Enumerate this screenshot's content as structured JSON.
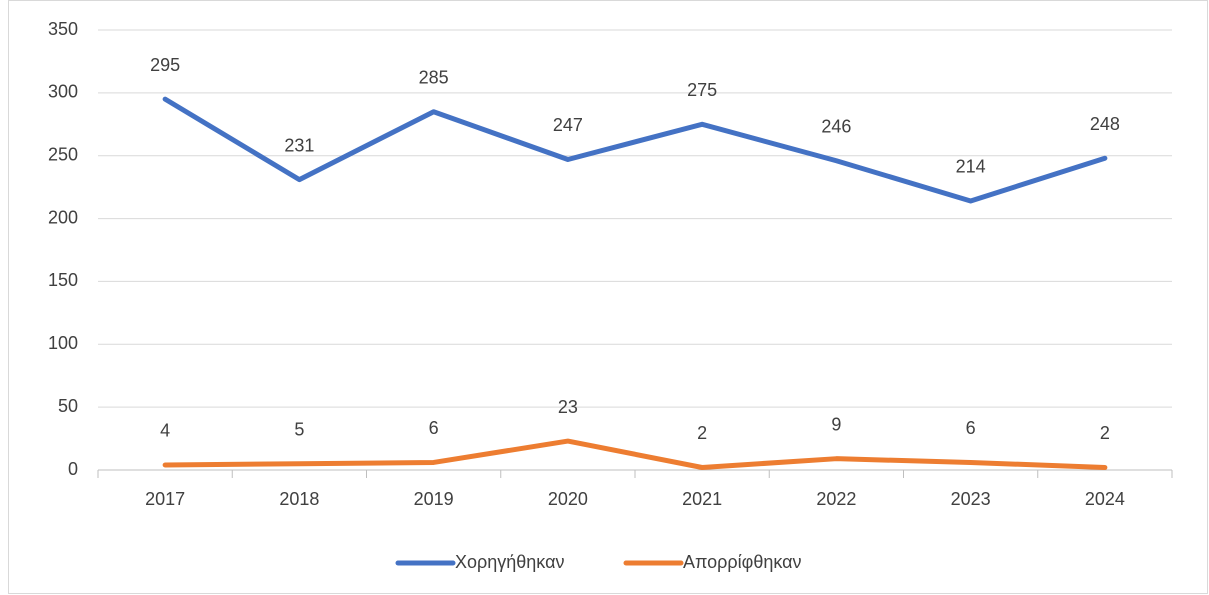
{
  "chart_data": {
    "type": "line",
    "categories": [
      "2017",
      "2018",
      "2019",
      "2020",
      "2021",
      "2022",
      "2023",
      "2024"
    ],
    "series": [
      {
        "name": "Χορηγήθηκαν",
        "color": "#4472c4",
        "values": [
          295,
          231,
          285,
          247,
          275,
          246,
          214,
          248
        ]
      },
      {
        "name": "Απορρίφθηκαν",
        "color": "#ed7d31",
        "values": [
          4,
          5,
          6,
          23,
          2,
          9,
          6,
          2
        ]
      }
    ],
    "ylim": [
      0,
      350
    ],
    "yticks": [
      0,
      50,
      100,
      150,
      200,
      250,
      300,
      350
    ],
    "grid": true,
    "legend": "bottom"
  }
}
